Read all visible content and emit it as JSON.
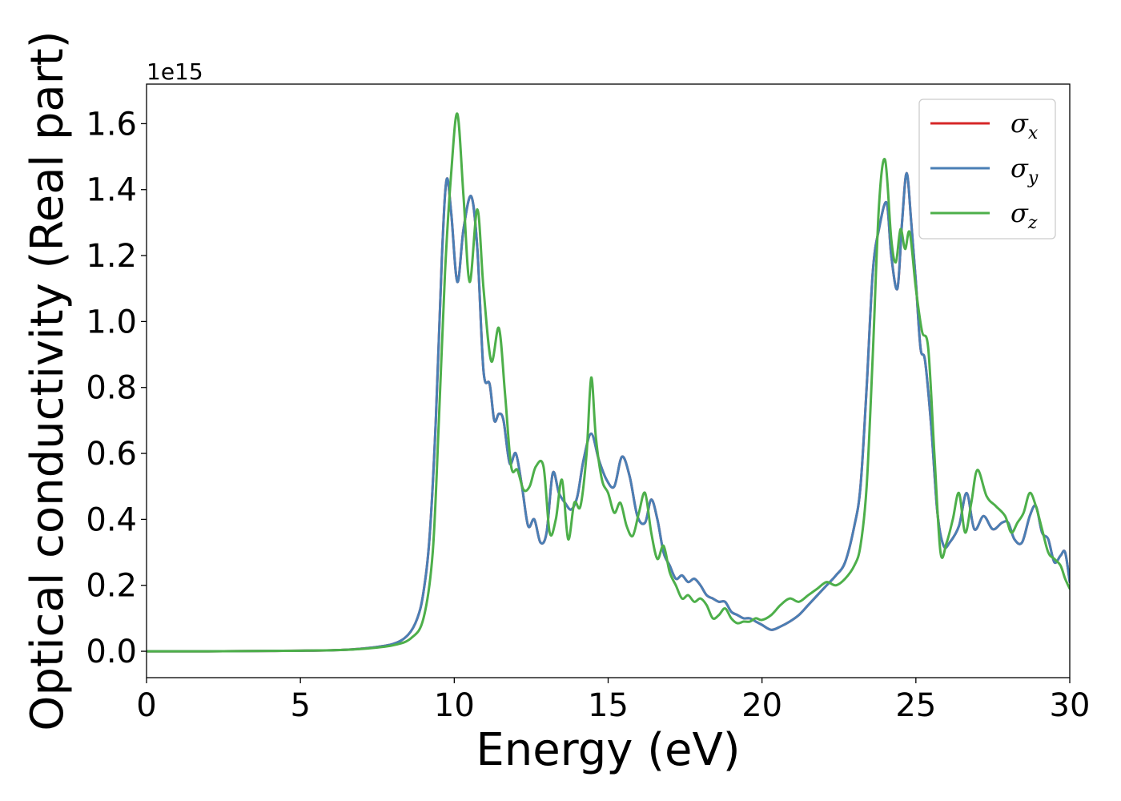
{
  "chart_data": {
    "type": "line",
    "title": "",
    "xlabel": "Energy (eV)",
    "ylabel": "Optical conductivity (Real part)",
    "y_offset_label": "1e15",
    "xlim": [
      0,
      30
    ],
    "ylim": [
      -0.08,
      1.72
    ],
    "x_ticks": [
      0,
      5,
      10,
      15,
      20,
      25,
      30
    ],
    "x_tick_labels": [
      "0",
      "5",
      "10",
      "15",
      "20",
      "25",
      "30"
    ],
    "y_ticks": [
      0.0,
      0.2,
      0.4,
      0.6,
      0.8,
      1.0,
      1.2,
      1.4,
      1.6
    ],
    "y_tick_labels": [
      "0.0",
      "0.2",
      "0.4",
      "0.6",
      "0.8",
      "1.0",
      "1.2",
      "1.4",
      "1.6"
    ],
    "grid": false,
    "legend_position": "top-right",
    "series": [
      {
        "name": "σx",
        "legend_base": "σ",
        "legend_sub": "x",
        "color": "#d62728",
        "x": [
          0,
          2,
          4,
          6,
          7,
          8,
          8.5,
          8.8,
          9.0,
          9.2,
          9.4,
          9.6,
          9.75,
          9.9,
          10.1,
          10.3,
          10.55,
          10.75,
          10.95,
          11.15,
          11.3,
          11.45,
          11.6,
          11.8,
          12.0,
          12.2,
          12.4,
          12.6,
          12.8,
          13.0,
          13.2,
          13.4,
          13.6,
          13.8,
          14.0,
          14.2,
          14.45,
          14.7,
          14.95,
          15.2,
          15.45,
          15.7,
          15.95,
          16.2,
          16.4,
          16.6,
          16.8,
          17.0,
          17.2,
          17.4,
          17.6,
          17.8,
          18.0,
          18.2,
          18.4,
          18.6,
          18.8,
          19.0,
          19.2,
          19.4,
          19.6,
          19.8,
          20.0,
          20.3,
          20.6,
          20.9,
          21.2,
          21.5,
          21.8,
          22.1,
          22.4,
          22.7,
          23.0,
          23.2,
          23.4,
          23.6,
          23.8,
          24.05,
          24.2,
          24.4,
          24.55,
          24.7,
          24.85,
          25.0,
          25.15,
          25.3,
          25.5,
          25.7,
          25.9,
          26.1,
          26.4,
          26.65,
          26.9,
          27.2,
          27.5,
          27.8,
          28.0,
          28.2,
          28.45,
          28.7,
          28.9,
          29.1,
          29.3,
          29.5,
          29.7,
          29.85,
          30.0
        ],
        "values": [
          0.0,
          0.0,
          0.001,
          0.003,
          0.008,
          0.022,
          0.05,
          0.1,
          0.18,
          0.35,
          0.7,
          1.2,
          1.43,
          1.33,
          1.12,
          1.28,
          1.38,
          1.22,
          0.85,
          0.81,
          0.7,
          0.72,
          0.7,
          0.57,
          0.6,
          0.5,
          0.38,
          0.4,
          0.33,
          0.36,
          0.54,
          0.48,
          0.45,
          0.43,
          0.47,
          0.58,
          0.66,
          0.58,
          0.52,
          0.5,
          0.59,
          0.53,
          0.41,
          0.39,
          0.46,
          0.4,
          0.3,
          0.26,
          0.22,
          0.23,
          0.21,
          0.22,
          0.2,
          0.17,
          0.16,
          0.15,
          0.15,
          0.12,
          0.11,
          0.1,
          0.1,
          0.09,
          0.08,
          0.065,
          0.075,
          0.09,
          0.11,
          0.14,
          0.17,
          0.2,
          0.23,
          0.27,
          0.38,
          0.5,
          0.8,
          1.15,
          1.28,
          1.36,
          1.2,
          1.1,
          1.3,
          1.45,
          1.3,
          1.12,
          0.92,
          0.88,
          0.68,
          0.42,
          0.32,
          0.33,
          0.38,
          0.48,
          0.37,
          0.41,
          0.37,
          0.39,
          0.39,
          0.34,
          0.33,
          0.41,
          0.44,
          0.36,
          0.34,
          0.27,
          0.29,
          0.3,
          0.21
        ]
      },
      {
        "name": "σy",
        "legend_base": "σ",
        "legend_sub": "y",
        "color": "#4a7fb5",
        "x": [
          0,
          2,
          4,
          6,
          7,
          8,
          8.5,
          8.8,
          9.0,
          9.2,
          9.4,
          9.6,
          9.75,
          9.9,
          10.1,
          10.3,
          10.55,
          10.75,
          10.95,
          11.15,
          11.3,
          11.45,
          11.6,
          11.8,
          12.0,
          12.2,
          12.4,
          12.6,
          12.8,
          13.0,
          13.2,
          13.4,
          13.6,
          13.8,
          14.0,
          14.2,
          14.45,
          14.7,
          14.95,
          15.2,
          15.45,
          15.7,
          15.95,
          16.2,
          16.4,
          16.6,
          16.8,
          17.0,
          17.2,
          17.4,
          17.6,
          17.8,
          18.0,
          18.2,
          18.4,
          18.6,
          18.8,
          19.0,
          19.2,
          19.4,
          19.6,
          19.8,
          20.0,
          20.3,
          20.6,
          20.9,
          21.2,
          21.5,
          21.8,
          22.1,
          22.4,
          22.7,
          23.0,
          23.2,
          23.4,
          23.6,
          23.8,
          24.05,
          24.2,
          24.4,
          24.55,
          24.7,
          24.85,
          25.0,
          25.15,
          25.3,
          25.5,
          25.7,
          25.9,
          26.1,
          26.4,
          26.65,
          26.9,
          27.2,
          27.5,
          27.8,
          28.0,
          28.2,
          28.45,
          28.7,
          28.9,
          29.1,
          29.3,
          29.5,
          29.7,
          29.85,
          30.0
        ],
        "values": [
          0.0,
          0.0,
          0.001,
          0.003,
          0.008,
          0.022,
          0.05,
          0.1,
          0.18,
          0.35,
          0.7,
          1.2,
          1.43,
          1.33,
          1.12,
          1.28,
          1.38,
          1.22,
          0.85,
          0.81,
          0.7,
          0.72,
          0.7,
          0.57,
          0.6,
          0.5,
          0.38,
          0.4,
          0.33,
          0.36,
          0.54,
          0.48,
          0.45,
          0.43,
          0.47,
          0.58,
          0.66,
          0.58,
          0.52,
          0.5,
          0.59,
          0.53,
          0.41,
          0.39,
          0.46,
          0.4,
          0.3,
          0.26,
          0.22,
          0.23,
          0.21,
          0.22,
          0.2,
          0.17,
          0.16,
          0.15,
          0.15,
          0.12,
          0.11,
          0.1,
          0.1,
          0.09,
          0.08,
          0.065,
          0.075,
          0.09,
          0.11,
          0.14,
          0.17,
          0.2,
          0.23,
          0.27,
          0.38,
          0.5,
          0.8,
          1.15,
          1.28,
          1.36,
          1.2,
          1.1,
          1.3,
          1.45,
          1.3,
          1.12,
          0.92,
          0.88,
          0.68,
          0.42,
          0.32,
          0.33,
          0.38,
          0.48,
          0.37,
          0.41,
          0.37,
          0.39,
          0.39,
          0.34,
          0.33,
          0.41,
          0.44,
          0.36,
          0.34,
          0.27,
          0.29,
          0.3,
          0.21
        ]
      },
      {
        "name": "σz",
        "legend_base": "σ",
        "legend_sub": "z",
        "color": "#4daf4a",
        "x": [
          0,
          2,
          4,
          6,
          7,
          8,
          8.6,
          9.0,
          9.3,
          9.5,
          9.7,
          9.9,
          10.1,
          10.3,
          10.5,
          10.75,
          10.95,
          11.2,
          11.45,
          11.65,
          11.85,
          12.05,
          12.25,
          12.45,
          12.65,
          12.9,
          13.1,
          13.3,
          13.5,
          13.7,
          13.9,
          14.1,
          14.3,
          14.45,
          14.6,
          14.8,
          15.0,
          15.2,
          15.4,
          15.6,
          15.8,
          16.0,
          16.2,
          16.4,
          16.6,
          16.8,
          17.0,
          17.2,
          17.4,
          17.6,
          17.8,
          18.0,
          18.2,
          18.4,
          18.6,
          18.8,
          19.0,
          19.2,
          19.4,
          19.6,
          19.8,
          20.0,
          20.3,
          20.6,
          20.9,
          21.2,
          21.5,
          21.8,
          22.1,
          22.4,
          22.7,
          23.0,
          23.2,
          23.4,
          23.6,
          23.8,
          24.0,
          24.2,
          24.35,
          24.5,
          24.65,
          24.8,
          25.0,
          25.2,
          25.4,
          25.6,
          25.8,
          26.0,
          26.2,
          26.4,
          26.6,
          26.8,
          27.0,
          27.3,
          27.6,
          27.9,
          28.1,
          28.3,
          28.5,
          28.7,
          28.9,
          29.1,
          29.3,
          29.5,
          29.7,
          29.85,
          30.0
        ],
        "values": [
          0.0,
          0.0,
          0.001,
          0.003,
          0.007,
          0.018,
          0.04,
          0.1,
          0.3,
          0.7,
          1.15,
          1.45,
          1.63,
          1.38,
          1.12,
          1.34,
          1.1,
          0.88,
          0.98,
          0.78,
          0.56,
          0.55,
          0.49,
          0.5,
          0.56,
          0.56,
          0.36,
          0.4,
          0.52,
          0.34,
          0.45,
          0.44,
          0.6,
          0.83,
          0.65,
          0.52,
          0.48,
          0.42,
          0.45,
          0.38,
          0.35,
          0.42,
          0.48,
          0.36,
          0.28,
          0.32,
          0.24,
          0.2,
          0.16,
          0.17,
          0.15,
          0.16,
          0.14,
          0.1,
          0.11,
          0.13,
          0.1,
          0.085,
          0.09,
          0.09,
          0.1,
          0.095,
          0.11,
          0.14,
          0.16,
          0.15,
          0.17,
          0.19,
          0.21,
          0.2,
          0.22,
          0.26,
          0.32,
          0.5,
          0.9,
          1.35,
          1.49,
          1.25,
          1.18,
          1.28,
          1.22,
          1.27,
          1.1,
          0.97,
          0.92,
          0.6,
          0.3,
          0.33,
          0.4,
          0.48,
          0.36,
          0.45,
          0.55,
          0.47,
          0.44,
          0.41,
          0.36,
          0.39,
          0.42,
          0.48,
          0.44,
          0.37,
          0.3,
          0.28,
          0.26,
          0.22,
          0.19
        ]
      }
    ]
  }
}
